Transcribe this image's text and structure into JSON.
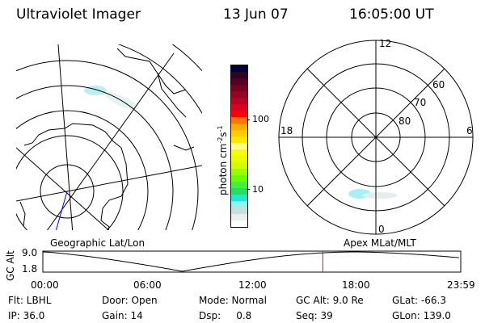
{
  "header": {
    "title": "Ultraviolet Imager",
    "date": "13 Jun 07",
    "time": "16:05:00 UT"
  },
  "colorbar": {
    "label": "photon cm",
    "label_exp1": "-2",
    "label_mid": "s",
    "label_exp2": "-1",
    "ticks": [
      "100",
      "10"
    ],
    "colors": [
      "#000033",
      "#330022",
      "#550022",
      "#770022",
      "#990022",
      "#bb0022",
      "#dd0022",
      "#ff0000",
      "#ff7700",
      "#ffaa00",
      "#ffcc00",
      "#ffe600",
      "#ffff88",
      "#f5ff00",
      "#e6ff00",
      "#ccff00",
      "#99ff00",
      "#66ff00",
      "#44ee44",
      "#22dd66",
      "#22e6d6",
      "#99f0f0",
      "#ccdddd",
      "#e6f0ea",
      "#ffffff"
    ]
  },
  "polar": {
    "labels": {
      "top": "12",
      "left": "18",
      "right": "6",
      "bottom": "0"
    },
    "rings": [
      "60",
      "70",
      "80"
    ]
  },
  "timeline": {
    "left_label": "Geographic Lat/Lon",
    "right_label": "Apex MLat/MLT",
    "ylabel": "GC Alt",
    "yticks": [
      "9.0",
      "1.8"
    ],
    "xticks": [
      "00:00",
      "06:00",
      "12:00",
      "18:00",
      "23:59"
    ],
    "current_hour": 16.08,
    "marker_color": "#ff0000"
  },
  "status": [
    [
      "Flt: LBHL",
      "IP: 36.0"
    ],
    [
      "Door: Open",
      "Gain: 14"
    ],
    [
      "Mode: Normal",
      "Dsp:     0.8"
    ],
    [
      "GC Alt: 9.0 Re",
      "Seq: 39"
    ],
    [
      "GLat: -66.3",
      "GLon: 139.0"
    ]
  ]
}
